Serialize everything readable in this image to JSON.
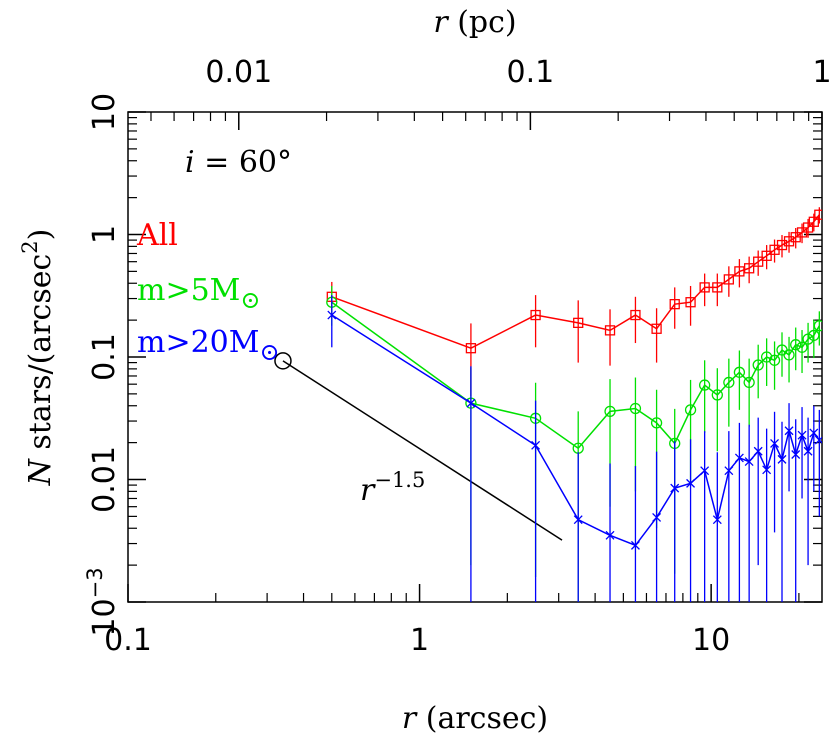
{
  "chart_data": {
    "type": "line",
    "xlabel": {
      "italic": "r",
      "text": " (arcsec)"
    },
    "ylabel": {
      "italic": "N",
      "text": " stars/(arcsec",
      "sup": "2",
      "end": ")"
    },
    "x2label": {
      "italic": "r",
      "text": " (pc)"
    },
    "xscale": "log",
    "yscale": "log",
    "xlim": [
      0.1,
      24
    ],
    "ylim": [
      0.001,
      10
    ],
    "x2lim": [
      0.00417,
      1
    ],
    "xticks": [
      0.1,
      1,
      10
    ],
    "x2ticks": [
      0.01,
      0.1,
      1
    ],
    "yticks": [
      {
        "value": 0.001,
        "label": "10",
        "sup": "−3"
      },
      0.01,
      0.1,
      1,
      10
    ],
    "minor_ticks": true,
    "annotation": {
      "italic": "i",
      "text": " = 60°"
    },
    "x": [
      0.5,
      1.5,
      2.5,
      3.5,
      4.5,
      5.5,
      6.5,
      7.5,
      8.5,
      9.5,
      10.5,
      11.5,
      12.5,
      13.5,
      14.5,
      15.5,
      16.5,
      17.5,
      18.5,
      19.5,
      20.5,
      21.5,
      22.5,
      23.5
    ],
    "series": [
      {
        "name": "All",
        "color": "#ff0000",
        "marker": "square",
        "values": [
          0.31,
          0.118,
          0.22,
          0.19,
          0.165,
          0.22,
          0.17,
          0.27,
          0.28,
          0.37,
          0.37,
          0.43,
          0.5,
          0.53,
          0.6,
          0.67,
          0.75,
          0.82,
          0.88,
          0.95,
          1.04,
          1.14,
          1.27,
          1.45
        ],
        "errors": [
          0.1,
          0.07,
          0.1,
          0.1,
          0.08,
          0.09,
          0.08,
          0.1,
          0.1,
          0.11,
          0.11,
          0.12,
          0.13,
          0.13,
          0.14,
          0.15,
          0.16,
          0.17,
          0.17,
          0.18,
          0.19,
          0.2,
          0.21,
          0.22
        ]
      },
      {
        "name": "m>5M",
        "name_sub": "⊙",
        "color": "#00e000",
        "marker": "circle",
        "values": [
          0.28,
          0.042,
          0.0316,
          0.018,
          0.036,
          0.038,
          0.029,
          0.0197,
          0.037,
          0.059,
          0.049,
          0.062,
          0.075,
          0.062,
          0.086,
          0.1,
          0.094,
          0.114,
          0.104,
          0.126,
          0.12,
          0.14,
          0.15,
          0.18
        ],
        "errors": [
          0.1,
          0.04,
          0.03,
          0.018,
          0.03,
          0.03,
          0.025,
          0.018,
          0.028,
          0.035,
          0.032,
          0.035,
          0.038,
          0.035,
          0.04,
          0.042,
          0.04,
          0.045,
          0.042,
          0.048,
          0.046,
          0.05,
          0.052,
          0.056
        ]
      },
      {
        "name": "m>20M",
        "name_sub": "⊙",
        "color": "#0000ff",
        "marker": "cross",
        "values": [
          0.22,
          0.042,
          0.019,
          0.0047,
          0.0035,
          0.0029,
          0.0049,
          0.0085,
          0.0093,
          0.0118,
          0.0047,
          0.0118,
          0.015,
          0.014,
          0.017,
          0.012,
          0.0197,
          0.0146,
          0.025,
          0.016,
          0.023,
          0.017,
          0.024,
          0.021
        ],
        "errors": [
          0.1,
          0.042,
          0.025,
          0.012,
          0.01,
          0.01,
          0.012,
          0.012,
          0.012,
          0.013,
          0.012,
          0.013,
          0.014,
          0.014,
          0.015,
          0.014,
          0.016,
          0.015,
          0.017,
          0.015,
          0.016,
          0.015,
          0.016,
          0.016
        ]
      }
    ],
    "reference_line": {
      "label": "r",
      "label_sup": "−1.5",
      "color": "#000000",
      "x": [
        0.34,
        3.08
      ],
      "y": [
        0.093,
        0.0032
      ]
    }
  }
}
